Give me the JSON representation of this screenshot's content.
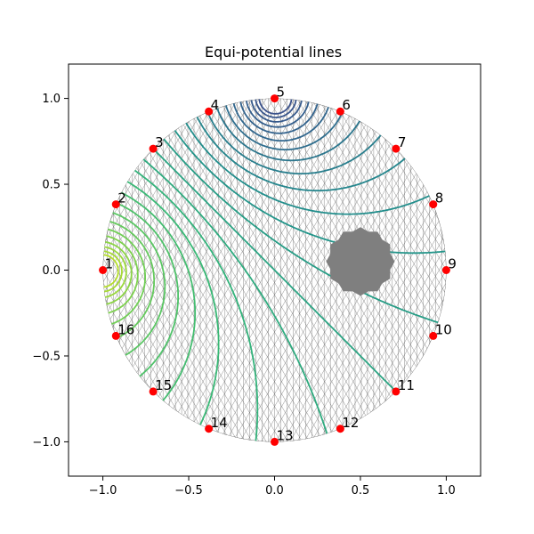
{
  "chart_data": {
    "type": "contour",
    "title": "Equi-potential lines",
    "xlim": [
      -1.2,
      1.2
    ],
    "ylim": [
      -1.2,
      1.2
    ],
    "xticks": [
      -1.0,
      -0.5,
      0.0,
      0.5,
      1.0
    ],
    "xtick_labels": [
      "−1.0",
      "−0.5",
      "0.0",
      "0.5",
      "1.0"
    ],
    "yticks": [
      1.0,
      0.5,
      0.0,
      -0.5,
      -1.0
    ],
    "ytick_labels": [
      "1.0",
      "0.5",
      "0.0",
      "−0.5",
      "−1.0"
    ],
    "grid": false,
    "domain": {
      "shape": "disk",
      "center": [
        0,
        0
      ],
      "radius": 1.0,
      "mesh": "triangular"
    },
    "inclusion": {
      "center": [
        0.5,
        0.05
      ],
      "radius": 0.2,
      "color": "#7f7f7f"
    },
    "electrodes": {
      "marker_color": "#ff0000",
      "labels": [
        "1",
        "2",
        "3",
        "4",
        "5",
        "6",
        "7",
        "8",
        "9",
        "10",
        "11",
        "12",
        "13",
        "14",
        "15",
        "16"
      ],
      "points": [
        [
          -1.0,
          0.0
        ],
        [
          -0.924,
          0.383
        ],
        [
          -0.707,
          0.707
        ],
        [
          -0.383,
          0.924
        ],
        [
          0.0,
          1.0
        ],
        [
          0.383,
          0.924
        ],
        [
          0.707,
          0.707
        ],
        [
          0.924,
          0.383
        ],
        [
          1.0,
          0.0
        ],
        [
          0.924,
          -0.383
        ],
        [
          0.707,
          -0.707
        ],
        [
          0.383,
          -0.924
        ],
        [
          0.0,
          -1.0
        ],
        [
          -0.383,
          -0.924
        ],
        [
          -0.707,
          -0.707
        ],
        [
          -0.924,
          -0.383
        ]
      ]
    },
    "source_electrode": 1,
    "sink_electrode": 5,
    "colormap": [
      "#3b528b",
      "#31688e",
      "#21918c",
      "#35b779",
      "#6ece58",
      "#b5de2b"
    ]
  }
}
